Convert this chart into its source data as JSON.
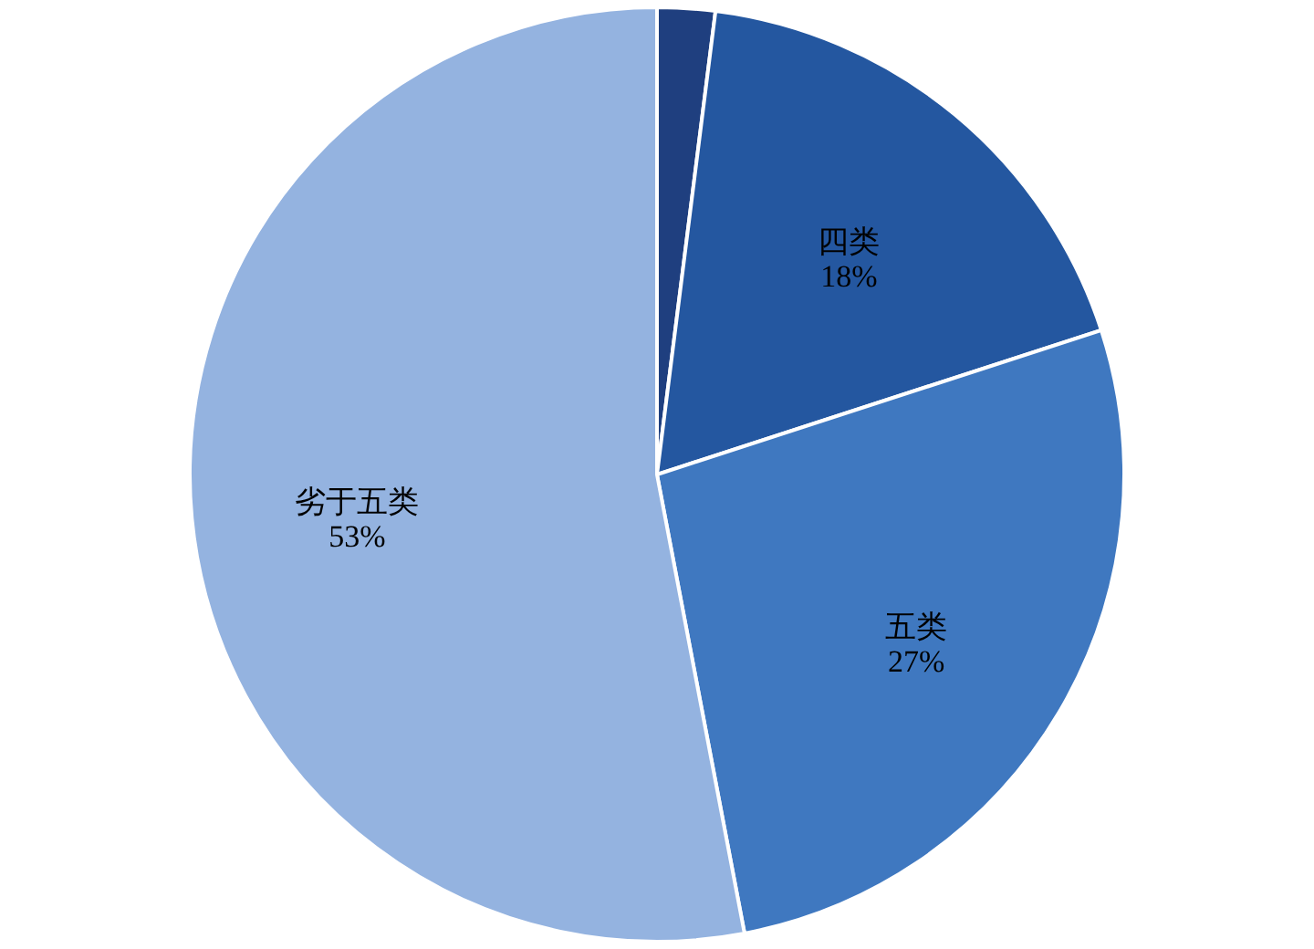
{
  "chart_data": {
    "type": "pie",
    "categories": [
      null,
      "四类",
      "五类",
      "劣于五类"
    ],
    "values": [
      2,
      18,
      27,
      53
    ],
    "colors": [
      "#1f3f7f",
      "#2457a0",
      "#3f78c0",
      "#94b3e0"
    ],
    "value_labels": [
      null,
      "18%",
      "27%",
      "53%"
    ],
    "legend": false
  }
}
